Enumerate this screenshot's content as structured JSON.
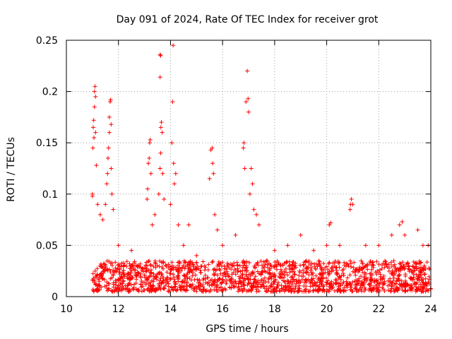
{
  "chart_data": {
    "type": "scatter",
    "title": "Day 091 of 2024, Rate Of TEC Index for receiver grot",
    "xlabel": "GPS time / hours",
    "ylabel": "ROTI / TECUs",
    "xlim": [
      10,
      24
    ],
    "ylim": [
      0,
      0.25
    ],
    "xticks": [
      10,
      12,
      14,
      16,
      18,
      20,
      22,
      24
    ],
    "xtick_labels": [
      "10",
      "12",
      "14",
      "16",
      "18",
      "20",
      "22",
      "24"
    ],
    "yticks": [
      0,
      0.05,
      0.1,
      0.15,
      0.2,
      0.25
    ],
    "ytick_labels": [
      "0",
      "0.05",
      "0.1",
      "0.15",
      "0.2",
      "0.25"
    ],
    "grid": true,
    "marker": "plus",
    "color": "#ff0000",
    "series": [
      {
        "points": [
          [
            11.0,
            0.098
          ],
          [
            11.0,
            0.1
          ],
          [
            11.02,
            0.145
          ],
          [
            11.03,
            0.165
          ],
          [
            11.05,
            0.172
          ],
          [
            11.06,
            0.155
          ],
          [
            11.08,
            0.185
          ],
          [
            11.08,
            0.2
          ],
          [
            11.1,
            0.205
          ],
          [
            11.12,
            0.195
          ],
          [
            11.12,
            0.16
          ],
          [
            11.15,
            0.128
          ],
          [
            11.2,
            0.09
          ],
          [
            11.3,
            0.08
          ],
          [
            11.4,
            0.075
          ],
          [
            11.5,
            0.09
          ],
          [
            11.55,
            0.11
          ],
          [
            11.58,
            0.12
          ],
          [
            11.6,
            0.135
          ],
          [
            11.62,
            0.145
          ],
          [
            11.65,
            0.16
          ],
          [
            11.65,
            0.175
          ],
          [
            11.68,
            0.19
          ],
          [
            11.7,
            0.192
          ],
          [
            11.72,
            0.168
          ],
          [
            11.72,
            0.125
          ],
          [
            11.75,
            0.1
          ],
          [
            11.8,
            0.085
          ],
          [
            12.0,
            0.05
          ],
          [
            12.5,
            0.045
          ],
          [
            13.1,
            0.095
          ],
          [
            13.12,
            0.105
          ],
          [
            13.15,
            0.13
          ],
          [
            13.18,
            0.135
          ],
          [
            13.2,
            0.15
          ],
          [
            13.22,
            0.153
          ],
          [
            13.25,
            0.12
          ],
          [
            13.3,
            0.07
          ],
          [
            13.4,
            0.08
          ],
          [
            13.55,
            0.1
          ],
          [
            13.6,
            0.125
          ],
          [
            13.62,
            0.14
          ],
          [
            13.63,
            0.165
          ],
          [
            13.65,
            0.17
          ],
          [
            13.68,
            0.16
          ],
          [
            13.6,
            0.214
          ],
          [
            13.6,
            0.236
          ],
          [
            13.62,
            0.235
          ],
          [
            13.7,
            0.12
          ],
          [
            13.75,
            0.095
          ],
          [
            14.0,
            0.09
          ],
          [
            14.05,
            0.15
          ],
          [
            14.08,
            0.19
          ],
          [
            14.1,
            0.245
          ],
          [
            14.12,
            0.13
          ],
          [
            14.15,
            0.11
          ],
          [
            14.2,
            0.12
          ],
          [
            14.3,
            0.07
          ],
          [
            14.5,
            0.05
          ],
          [
            14.7,
            0.07
          ],
          [
            15.0,
            0.04
          ],
          [
            15.5,
            0.115
          ],
          [
            15.55,
            0.143
          ],
          [
            15.6,
            0.145
          ],
          [
            15.62,
            0.13
          ],
          [
            15.65,
            0.12
          ],
          [
            15.7,
            0.08
          ],
          [
            15.8,
            0.065
          ],
          [
            16.0,
            0.05
          ],
          [
            16.5,
            0.06
          ],
          [
            16.8,
            0.145
          ],
          [
            16.82,
            0.15
          ],
          [
            16.85,
            0.125
          ],
          [
            16.9,
            0.19
          ],
          [
            16.95,
            0.22
          ],
          [
            16.98,
            0.193
          ],
          [
            17.0,
            0.18
          ],
          [
            17.05,
            0.1
          ],
          [
            17.1,
            0.125
          ],
          [
            17.15,
            0.11
          ],
          [
            17.2,
            0.085
          ],
          [
            17.3,
            0.08
          ],
          [
            17.4,
            0.07
          ],
          [
            18.0,
            0.045
          ],
          [
            18.5,
            0.05
          ],
          [
            19.0,
            0.06
          ],
          [
            19.5,
            0.045
          ],
          [
            20.0,
            0.05
          ],
          [
            20.1,
            0.07
          ],
          [
            20.15,
            0.072
          ],
          [
            20.5,
            0.05
          ],
          [
            20.9,
            0.085
          ],
          [
            20.92,
            0.09
          ],
          [
            20.95,
            0.095
          ],
          [
            21.0,
            0.09
          ],
          [
            21.5,
            0.05
          ],
          [
            22.0,
            0.05
          ],
          [
            22.5,
            0.06
          ],
          [
            22.8,
            0.07
          ],
          [
            22.9,
            0.073
          ],
          [
            23.0,
            0.06
          ],
          [
            23.5,
            0.065
          ],
          [
            23.7,
            0.05
          ],
          [
            23.9,
            0.05
          ]
        ],
        "dense_band": {
          "x_range": [
            11.0,
            24.0
          ],
          "y_range": [
            0.005,
            0.035
          ],
          "description_level": "dense floor of points"
        }
      }
    ]
  }
}
